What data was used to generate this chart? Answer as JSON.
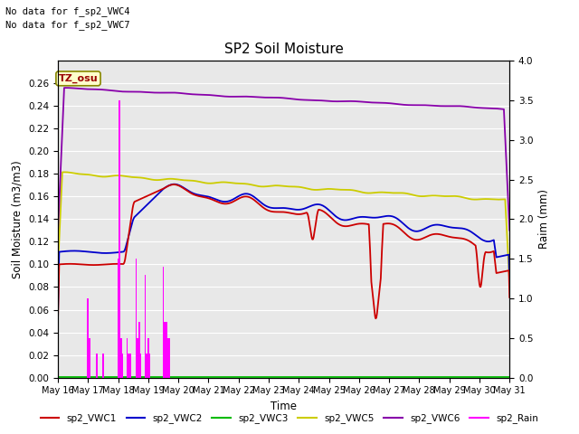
{
  "title": "SP2 Soil Moisture",
  "xlabel": "Time",
  "ylabel_left": "Soil Moisture (m3/m3)",
  "ylabel_right": "Raim (mm)",
  "no_data_text": [
    "No data for f_sp2_VWC4",
    "No data for f_sp2_VWC7"
  ],
  "annotation_text": "TZ_osu",
  "ylim_left": [
    0.0,
    0.28
  ],
  "ylim_right": [
    0.0,
    4.0
  ],
  "yticks_left": [
    0.0,
    0.02,
    0.04,
    0.06,
    0.08,
    0.1,
    0.12,
    0.14,
    0.16,
    0.18,
    0.2,
    0.22,
    0.24,
    0.26
  ],
  "yticks_right": [
    0.0,
    0.5,
    1.0,
    1.5,
    2.0,
    2.5,
    3.0,
    3.5,
    4.0
  ],
  "xtick_labels": [
    "May 16",
    "May 17",
    "May 18",
    "May 19",
    "May 20",
    "May 21",
    "May 22",
    "May 23",
    "May 24",
    "May 25",
    "May 26",
    "May 27",
    "May 28",
    "May 29",
    "May 30",
    "May 31"
  ],
  "colors": {
    "sp2_VWC1": "#cc0000",
    "sp2_VWC2": "#0000cc",
    "sp2_VWC3": "#00bb00",
    "sp2_VWC5": "#cccc00",
    "sp2_VWC6": "#8800aa",
    "sp2_Rain": "#ff00ff"
  },
  "bg_color": "#e8e8e8",
  "grid_color": "#ffffff",
  "fig_width": 6.4,
  "fig_height": 4.8,
  "dpi": 100
}
